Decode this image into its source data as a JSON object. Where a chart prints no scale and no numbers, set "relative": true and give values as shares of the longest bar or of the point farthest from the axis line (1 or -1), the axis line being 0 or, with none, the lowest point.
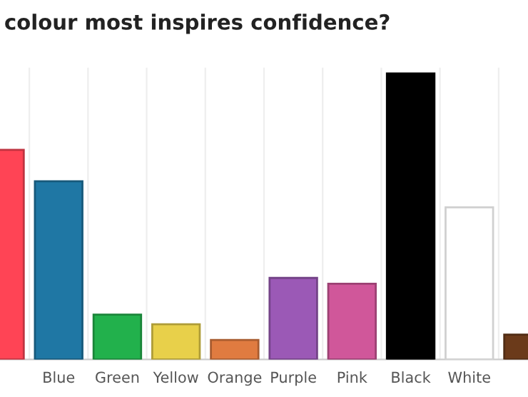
{
  "chart_data": {
    "type": "bar",
    "title": "colour most inspires confidence?",
    "relative": true,
    "grid": "x",
    "categories": [
      null,
      "Blue",
      "Green",
      "Yellow",
      "Orange",
      "Purple",
      "Pink",
      "Black",
      "White",
      null
    ],
    "values": [
      0.733,
      0.623,
      0.157,
      0.123,
      0.068,
      0.285,
      0.265,
      1,
      0.532,
      0.087
    ],
    "colors": [
      "#ff4455",
      "#1f77a4",
      "#22b14c",
      "#e8d04a",
      "#e07b40",
      "#9b59b6",
      "#d0579a",
      "#000000",
      "#ffffff",
      "#6b3a1a"
    ]
  }
}
